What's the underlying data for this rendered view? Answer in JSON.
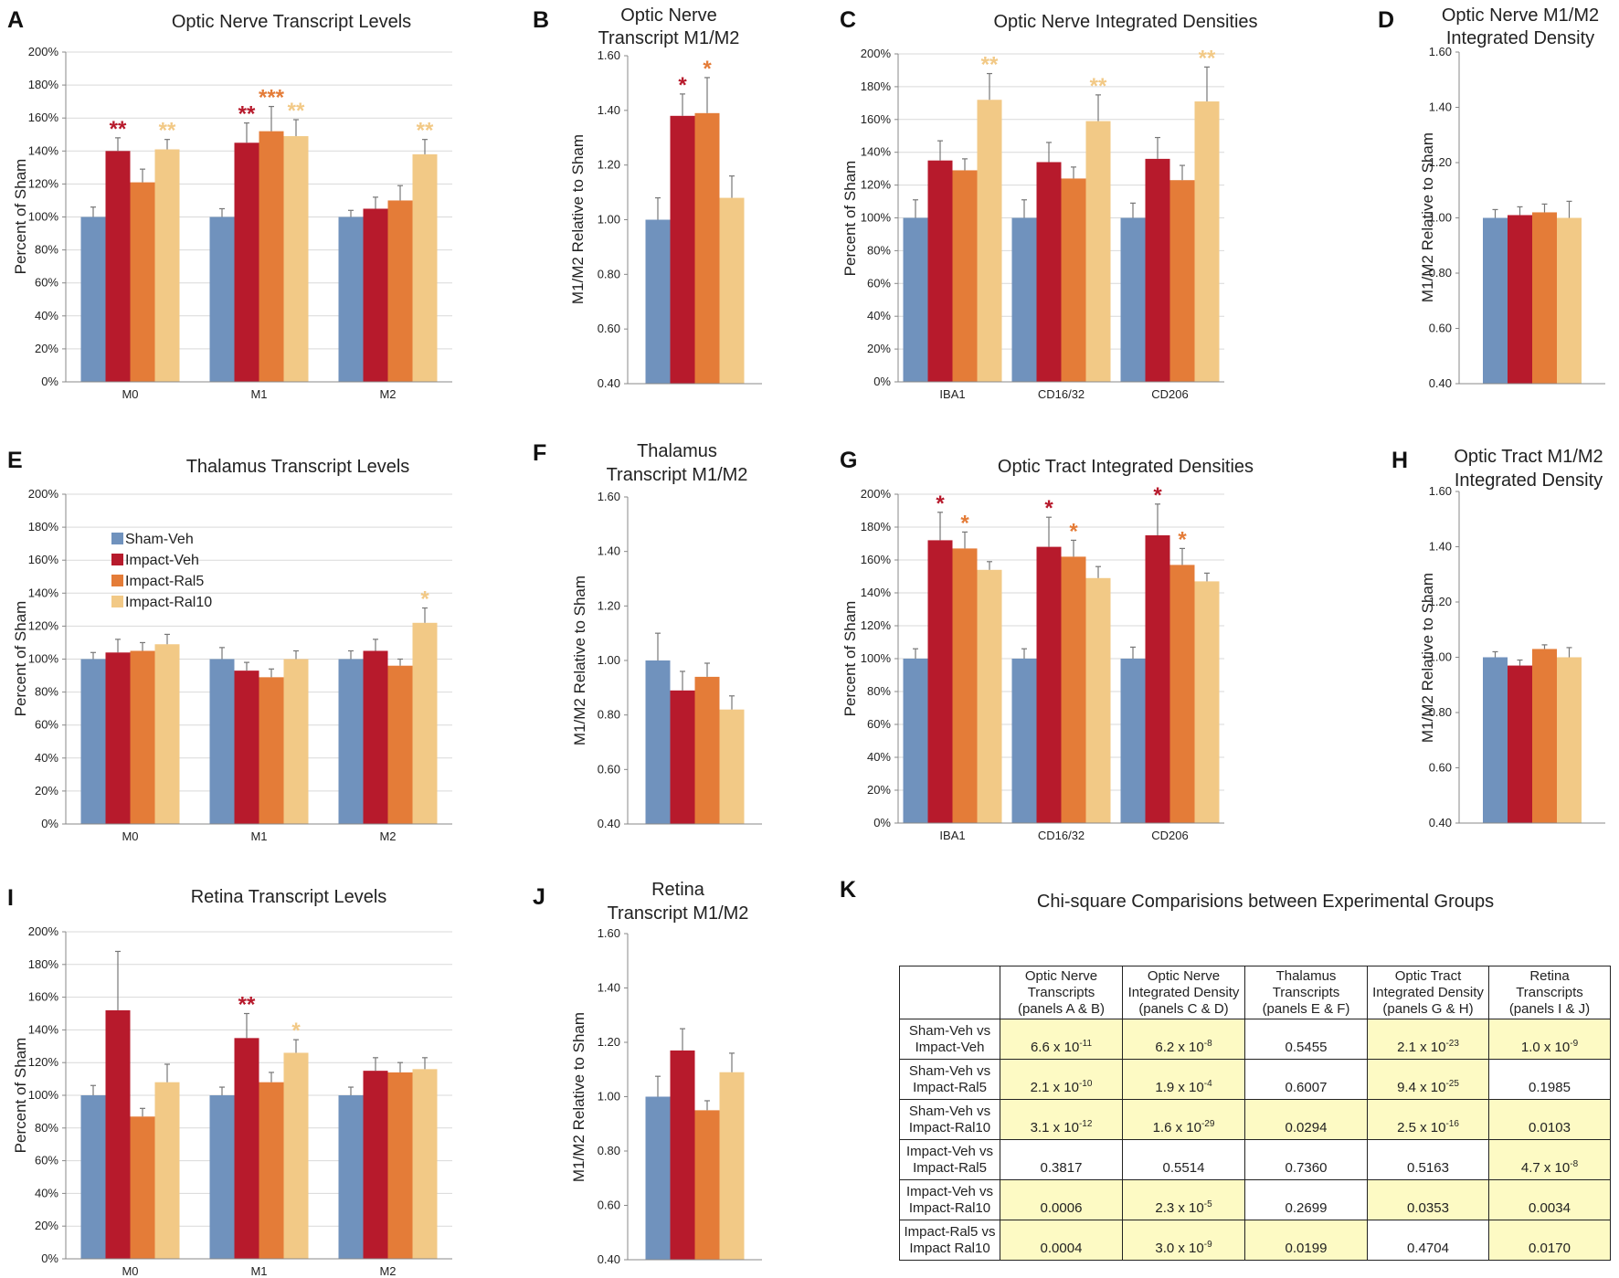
{
  "legend": [
    {
      "name": "Sham-Veh",
      "color": "#7092bd"
    },
    {
      "name": "Impact-Veh",
      "color": "#b71a2c"
    },
    {
      "name": "Impact-Ral5",
      "color": "#e47c38"
    },
    {
      "name": "Impact-Ral10",
      "color": "#f2c986"
    }
  ],
  "chart_data": [
    {
      "panel": "A",
      "type": "bar",
      "title": [
        "Optic Nerve Transcript Levels"
      ],
      "ylabel": "Percent of Sham",
      "ylim": [
        0,
        200
      ],
      "ytick_step": 20,
      "ytick_format": "pct",
      "categories": [
        "M0",
        "M1",
        "M2"
      ],
      "series": [
        {
          "name": "Sham-Veh",
          "values": [
            100,
            100,
            100
          ],
          "errors": [
            6,
            5,
            4
          ]
        },
        {
          "name": "Impact-Veh",
          "values": [
            140,
            145,
            105
          ],
          "errors": [
            8,
            12,
            7
          ]
        },
        {
          "name": "Impact-Ral5",
          "values": [
            121,
            152,
            110
          ],
          "errors": [
            8,
            15,
            9
          ]
        },
        {
          "name": "Impact-Ral10",
          "values": [
            141,
            149,
            138
          ],
          "errors": [
            6,
            10,
            9
          ]
        }
      ],
      "annotations": [
        {
          "cat": 0,
          "series": 1,
          "text": "**"
        },
        {
          "cat": 0,
          "series": 3,
          "text": "**"
        },
        {
          "cat": 1,
          "series": 1,
          "text": "**"
        },
        {
          "cat": 1,
          "series": 2,
          "text": "***"
        },
        {
          "cat": 1,
          "series": 3,
          "text": "**"
        },
        {
          "cat": 2,
          "series": 3,
          "text": "**"
        }
      ]
    },
    {
      "panel": "B",
      "type": "bar",
      "title": [
        "Optic Nerve",
        "Transcript M1/M2"
      ],
      "ylabel": "M1/M2 Relative to Sham",
      "ylim": [
        0.4,
        1.6
      ],
      "ytick_step": 0.2,
      "ytick_format": "dec",
      "categories": [
        ""
      ],
      "series": [
        {
          "name": "Sham-Veh",
          "values": [
            1.0
          ],
          "errors": [
            0.08
          ]
        },
        {
          "name": "Impact-Veh",
          "values": [
            1.38
          ],
          "errors": [
            0.08
          ]
        },
        {
          "name": "Impact-Ral5",
          "values": [
            1.39
          ],
          "errors": [
            0.13
          ]
        },
        {
          "name": "Impact-Ral10",
          "values": [
            1.08
          ],
          "errors": [
            0.08
          ]
        }
      ],
      "annotations": [
        {
          "cat": 0,
          "series": 1,
          "text": "*"
        },
        {
          "cat": 0,
          "series": 2,
          "text": "*"
        }
      ]
    },
    {
      "panel": "C",
      "type": "bar",
      "title": [
        "Optic Nerve Integrated Densities"
      ],
      "ylabel": "Percent of Sham",
      "ylim": [
        0,
        200
      ],
      "ytick_step": 20,
      "ytick_format": "pct",
      "categories": [
        "IBA1",
        "CD16/32",
        "CD206"
      ],
      "series": [
        {
          "name": "Sham-Veh",
          "values": [
            100,
            100,
            100
          ],
          "errors": [
            11,
            11,
            9
          ]
        },
        {
          "name": "Impact-Veh",
          "values": [
            135,
            134,
            136
          ],
          "errors": [
            12,
            12,
            13
          ]
        },
        {
          "name": "Impact-Ral5",
          "values": [
            129,
            124,
            123
          ],
          "errors": [
            7,
            7,
            9
          ]
        },
        {
          "name": "Impact-Ral10",
          "values": [
            172,
            159,
            171
          ],
          "errors": [
            16,
            16,
            21
          ]
        }
      ],
      "annotations": [
        {
          "cat": 0,
          "series": 3,
          "text": "**"
        },
        {
          "cat": 1,
          "series": 3,
          "text": "**"
        },
        {
          "cat": 2,
          "series": 3,
          "text": "**"
        }
      ]
    },
    {
      "panel": "D",
      "type": "bar",
      "title": [
        "Optic Nerve M1/M2",
        "Integrated Density"
      ],
      "ylabel": "M1/M2 Relative to Sham",
      "ylim": [
        0.4,
        1.6
      ],
      "ytick_step": 0.2,
      "ytick_format": "dec",
      "categories": [
        ""
      ],
      "series": [
        {
          "name": "Sham-Veh",
          "values": [
            1.0
          ],
          "errors": [
            0.03
          ]
        },
        {
          "name": "Impact-Veh",
          "values": [
            1.01
          ],
          "errors": [
            0.03
          ]
        },
        {
          "name": "Impact-Ral5",
          "values": [
            1.02
          ],
          "errors": [
            0.03
          ]
        },
        {
          "name": "Impact-Ral10",
          "values": [
            1.0
          ],
          "errors": [
            0.06
          ]
        }
      ],
      "annotations": []
    },
    {
      "panel": "E",
      "type": "bar",
      "title": [
        "Thalamus Transcript Levels"
      ],
      "ylabel": "Percent of Sham",
      "ylim": [
        0,
        200
      ],
      "ytick_step": 20,
      "ytick_format": "pct",
      "categories": [
        "M0",
        "M1",
        "M2"
      ],
      "series": [
        {
          "name": "Sham-Veh",
          "values": [
            100,
            100,
            100
          ],
          "errors": [
            4,
            7,
            5
          ]
        },
        {
          "name": "Impact-Veh",
          "values": [
            104,
            93,
            105
          ],
          "errors": [
            8,
            5,
            7
          ]
        },
        {
          "name": "Impact-Ral5",
          "values": [
            105,
            89,
            96
          ],
          "errors": [
            5,
            5,
            4
          ]
        },
        {
          "name": "Impact-Ral10",
          "values": [
            109,
            100,
            122
          ],
          "errors": [
            6,
            5,
            9
          ]
        }
      ],
      "annotations": [
        {
          "cat": 2,
          "series": 3,
          "text": "*"
        }
      ],
      "show_legend": true
    },
    {
      "panel": "F",
      "type": "bar",
      "title": [
        "Thalamus",
        "Transcript M1/M2"
      ],
      "ylabel": "M1/M2 Relative to Sham",
      "ylim": [
        0.4,
        1.6
      ],
      "ytick_step": 0.2,
      "ytick_format": "dec",
      "categories": [
        ""
      ],
      "series": [
        {
          "name": "Sham-Veh",
          "values": [
            1.0
          ],
          "errors": [
            0.1
          ]
        },
        {
          "name": "Impact-Veh",
          "values": [
            0.89
          ],
          "errors": [
            0.07
          ]
        },
        {
          "name": "Impact-Ral5",
          "values": [
            0.94
          ],
          "errors": [
            0.05
          ]
        },
        {
          "name": "Impact-Ral10",
          "values": [
            0.82
          ],
          "errors": [
            0.05
          ]
        }
      ],
      "annotations": []
    },
    {
      "panel": "G",
      "type": "bar",
      "title": [
        "Optic Tract Integrated Densities"
      ],
      "ylabel": "Percent of Sham",
      "ylim": [
        0,
        200
      ],
      "ytick_step": 20,
      "ytick_format": "pct",
      "categories": [
        "IBA1",
        "CD16/32",
        "CD206"
      ],
      "series": [
        {
          "name": "Sham-Veh",
          "values": [
            100,
            100,
            100
          ],
          "errors": [
            6,
            6,
            7
          ]
        },
        {
          "name": "Impact-Veh",
          "values": [
            172,
            168,
            175
          ],
          "errors": [
            17,
            18,
            19
          ]
        },
        {
          "name": "Impact-Ral5",
          "values": [
            167,
            162,
            157
          ],
          "errors": [
            10,
            10,
            10
          ]
        },
        {
          "name": "Impact-Ral10",
          "values": [
            154,
            149,
            147
          ],
          "errors": [
            5,
            7,
            5
          ]
        }
      ],
      "annotations": [
        {
          "cat": 0,
          "series": 1,
          "text": "*"
        },
        {
          "cat": 0,
          "series": 2,
          "text": "*"
        },
        {
          "cat": 1,
          "series": 1,
          "text": "*"
        },
        {
          "cat": 1,
          "series": 2,
          "text": "*"
        },
        {
          "cat": 2,
          "series": 1,
          "text": "*"
        },
        {
          "cat": 2,
          "series": 2,
          "text": "*"
        }
      ]
    },
    {
      "panel": "H",
      "type": "bar",
      "title": [
        "Optic Tract M1/M2",
        "Integrated Density"
      ],
      "ylabel": "M1/M2 Relative to Sham",
      "ylim": [
        0.4,
        1.6
      ],
      "ytick_step": 0.2,
      "ytick_format": "dec",
      "categories": [
        ""
      ],
      "series": [
        {
          "name": "Sham-Veh",
          "values": [
            1.0
          ],
          "errors": [
            0.02
          ]
        },
        {
          "name": "Impact-Veh",
          "values": [
            0.97
          ],
          "errors": [
            0.02
          ]
        },
        {
          "name": "Impact-Ral5",
          "values": [
            1.03
          ],
          "errors": [
            0.015
          ]
        },
        {
          "name": "Impact-Ral10",
          "values": [
            1.0
          ],
          "errors": [
            0.035
          ]
        }
      ],
      "annotations": []
    },
    {
      "panel": "I",
      "type": "bar",
      "title": [
        "Retina Transcript Levels"
      ],
      "ylabel": "Percent of Sham",
      "ylim": [
        0,
        200
      ],
      "ytick_step": 20,
      "ytick_format": "pct",
      "categories": [
        "M0",
        "M1",
        "M2"
      ],
      "series": [
        {
          "name": "Sham-Veh",
          "values": [
            100,
            100,
            100
          ],
          "errors": [
            6,
            5,
            5
          ]
        },
        {
          "name": "Impact-Veh",
          "values": [
            152,
            135,
            115
          ],
          "errors": [
            36,
            15,
            8
          ]
        },
        {
          "name": "Impact-Ral5",
          "values": [
            87,
            108,
            114
          ],
          "errors": [
            5,
            6,
            6
          ]
        },
        {
          "name": "Impact-Ral10",
          "values": [
            108,
            126,
            116
          ],
          "errors": [
            11,
            8,
            7
          ]
        }
      ],
      "annotations": [
        {
          "cat": 1,
          "series": 1,
          "text": "**"
        },
        {
          "cat": 1,
          "series": 3,
          "text": "*"
        }
      ]
    },
    {
      "panel": "J",
      "type": "bar",
      "title": [
        "Retina",
        "Transcript M1/M2"
      ],
      "ylabel": "M1/M2 Relative to Sham",
      "ylim": [
        0.4,
        1.6
      ],
      "ytick_step": 0.2,
      "ytick_format": "dec",
      "categories": [
        ""
      ],
      "series": [
        {
          "name": "Sham-Veh",
          "values": [
            1.0
          ],
          "errors": [
            0.075
          ]
        },
        {
          "name": "Impact-Veh",
          "values": [
            1.17
          ],
          "errors": [
            0.08
          ]
        },
        {
          "name": "Impact-Ral5",
          "values": [
            0.95
          ],
          "errors": [
            0.035
          ]
        },
        {
          "name": "Impact-Ral10",
          "values": [
            1.09
          ],
          "errors": [
            0.07
          ]
        }
      ],
      "annotations": []
    },
    {
      "panel": "K",
      "type": "table",
      "title": "Chi-square Comparisions between Experimental Groups",
      "columns": [
        [
          "Optic Nerve",
          "Transcripts",
          "(panels A & B)"
        ],
        [
          "Optic Nerve",
          "Integrated Density",
          "(panels C & D)"
        ],
        [
          "Thalamus",
          "Transcripts",
          "(panels E & F)"
        ],
        [
          "Optic Tract",
          "Integrated Density",
          "(panels G & H)"
        ],
        [
          "Retina",
          "Transcripts",
          "(panels I & J)"
        ]
      ],
      "rows": [
        {
          "label": [
            "Sham-Veh vs",
            "Impact-Veh"
          ],
          "cells": [
            {
              "m": "6.6 x 10",
              "e": "-11",
              "hl": true
            },
            {
              "m": "6.2 x 10",
              "e": "-8",
              "hl": true
            },
            {
              "m": "0.5455",
              "e": "",
              "hl": false
            },
            {
              "m": "2.1 x 10",
              "e": "-23",
              "hl": true
            },
            {
              "m": "1.0 x 10",
              "e": "-9",
              "hl": true
            }
          ]
        },
        {
          "label": [
            "Sham-Veh vs",
            "Impact-Ral5"
          ],
          "cells": [
            {
              "m": "2.1 x 10",
              "e": "-10",
              "hl": true
            },
            {
              "m": "1.9 x 10",
              "e": "-4",
              "hl": true
            },
            {
              "m": "0.6007",
              "e": "",
              "hl": false
            },
            {
              "m": "9.4 x 10",
              "e": "-25",
              "hl": true
            },
            {
              "m": "0.1985",
              "e": "",
              "hl": false
            }
          ]
        },
        {
          "label": [
            "Sham-Veh vs",
            "Impact-Ral10"
          ],
          "cells": [
            {
              "m": "3.1 x 10",
              "e": "-12",
              "hl": true
            },
            {
              "m": "1.6 x 10",
              "e": "-29",
              "hl": true
            },
            {
              "m": "0.0294",
              "e": "",
              "hl": true
            },
            {
              "m": "2.5 x 10",
              "e": "-16",
              "hl": true
            },
            {
              "m": "0.0103",
              "e": "",
              "hl": true
            }
          ]
        },
        {
          "label": [
            "Impact-Veh vs",
            "Impact-Ral5"
          ],
          "cells": [
            {
              "m": "0.3817",
              "e": "",
              "hl": false
            },
            {
              "m": "0.5514",
              "e": "",
              "hl": false
            },
            {
              "m": "0.7360",
              "e": "",
              "hl": false
            },
            {
              "m": "0.5163",
              "e": "",
              "hl": false
            },
            {
              "m": "4.7 x 10",
              "e": "-8",
              "hl": true
            }
          ]
        },
        {
          "label": [
            "Impact-Veh vs",
            "Impact-Ral10"
          ],
          "cells": [
            {
              "m": "0.0006",
              "e": "",
              "hl": true
            },
            {
              "m": "2.3 x 10",
              "e": "-5",
              "hl": true
            },
            {
              "m": "0.2699",
              "e": "",
              "hl": false
            },
            {
              "m": "0.0353",
              "e": "",
              "hl": true
            },
            {
              "m": "0.0034",
              "e": "",
              "hl": true
            }
          ]
        },
        {
          "label": [
            "Impact-Ral5 vs",
            "Impact Ral10"
          ],
          "cells": [
            {
              "m": "0.0004",
              "e": "",
              "hl": true
            },
            {
              "m": "3.0 x 10",
              "e": "-9",
              "hl": true
            },
            {
              "m": "0.0199",
              "e": "",
              "hl": true
            },
            {
              "m": "0.4704",
              "e": "",
              "hl": false
            },
            {
              "m": "0.0170",
              "e": "",
              "hl": true
            }
          ]
        }
      ]
    }
  ]
}
